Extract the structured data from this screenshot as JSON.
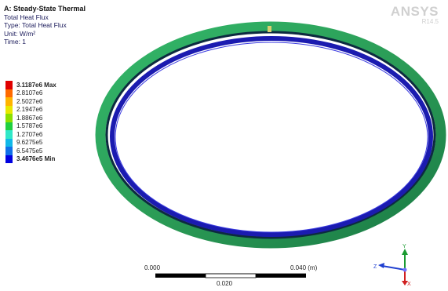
{
  "info": {
    "title": "A: Steady-State Thermal",
    "result": "Total Heat Flux",
    "type": "Type: Total Heat Flux",
    "unit": "Unit: W/m²",
    "time": "Time: 1"
  },
  "brand": {
    "name": "ANSYS",
    "version": "R14.5"
  },
  "legend": {
    "entries": [
      {
        "label": "3.1187e6 Max",
        "color": "#e00000"
      },
      {
        "label": "2.8107e6",
        "color": "#ff6a00"
      },
      {
        "label": "2.5027e6",
        "color": "#ffb400"
      },
      {
        "label": "2.1947e6",
        "color": "#e8e800"
      },
      {
        "label": "1.8867e6",
        "color": "#8ce000"
      },
      {
        "label": "1.5787e6",
        "color": "#20d040"
      },
      {
        "label": "1.2707e6",
        "color": "#30e8c8"
      },
      {
        "label": "9.6275e5",
        "color": "#10b8e8"
      },
      {
        "label": "6.5475e5",
        "color": "#1070e8"
      },
      {
        "label": "3.4676e5 Min",
        "color": "#0000e0"
      }
    ]
  },
  "scale_bar": {
    "left_label": "0.000",
    "mid_label": "0.020",
    "right_label": "0.040 (m)"
  },
  "triad": {
    "x": "X",
    "y": "Y",
    "z": "Z"
  },
  "colors": {
    "ring_outer": "#2fa35a",
    "ring_inner": "#1b1bb0",
    "ring_dark": "#0d2a40",
    "brand": "#d0d0d0"
  }
}
